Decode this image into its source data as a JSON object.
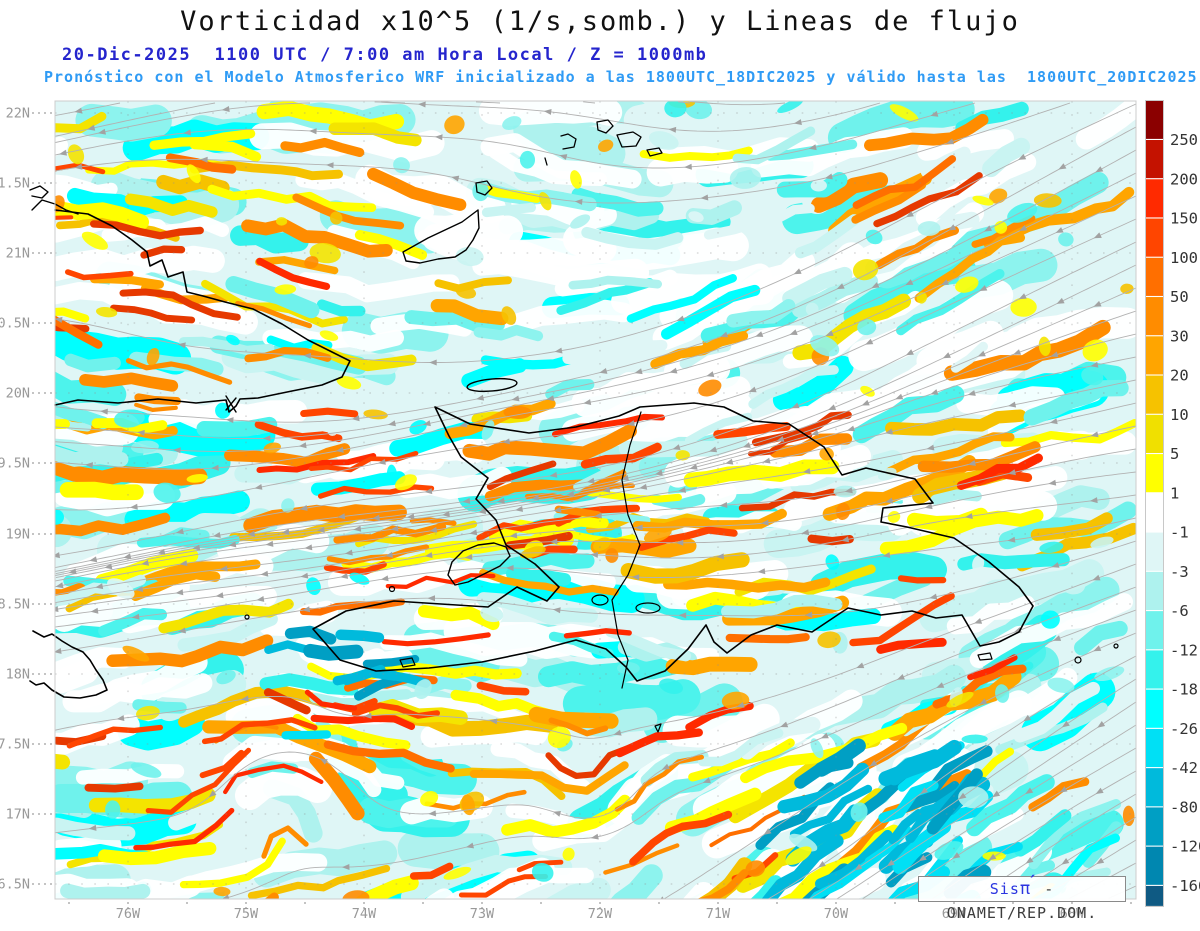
{
  "header": {
    "title": "Vorticidad x10^5 (1/s,somb.) y Lineas de flujo",
    "subtitle": "20-Dic-2025  1100 UTC / 7:00 am Hora Local / Z = 1000mb",
    "model_line": "Pronóstico con el Modelo Atmosferico WRF inicializado a las 1800UTC_18DIC2025 y válido hasta las  1800UTC_20DIC2025"
  },
  "axes": {
    "lat_labels": [
      "22N",
      "1.5N",
      "21N",
      "0.5N",
      "20N",
      "9.5N",
      "19N",
      "8.5N",
      "18N",
      "7.5N",
      "17N",
      "6.5N"
    ],
    "lon_labels": [
      "76W",
      "75W",
      "74W",
      "73W",
      "72W",
      "71W",
      "70W",
      "69W",
      "68W"
    ]
  },
  "colorbar": {
    "labels": [
      "250",
      "200",
      "150",
      "100",
      "50",
      "30",
      "20",
      "10",
      "5",
      "1",
      "-1",
      "-3",
      "-6",
      "-12",
      "-18",
      "-26",
      "-42",
      "-80",
      "-120",
      "-160"
    ],
    "colors": [
      "#8b0000",
      "#c41200",
      "#ff2a00",
      "#ff4500",
      "#ff6f00",
      "#ff8c00",
      "#ffa500",
      "#f6c200",
      "#f0e000",
      "#ffff00",
      "#ffffff",
      "#dff6f6",
      "#aef2ee",
      "#6ff2ec",
      "#34f2ec",
      "#00ffff",
      "#00e0f5",
      "#00badc",
      "#009fc4",
      "#0087b0",
      "#0f5a83"
    ]
  },
  "watermark": {
    "prefix": "Sis",
    "symbol": "π",
    "accent": "´",
    "rest": "-  ONAMET/REP.DOM."
  },
  "colors": {
    "title": "#111111",
    "subtitle": "#2525cd",
    "model_line": "#2f9bf5",
    "axis": "#999999",
    "coastline": "#000000",
    "streamline": "#b2b2b2",
    "arrow": "#a2a2a2",
    "grid": "#909090",
    "watermark_brand": "#2b35e0",
    "watermark_text": "#3c3c3c",
    "field_base": "#dff6f6"
  },
  "chart_data": {
    "type": "heatmap",
    "title": "Vorticidad x10^5 (1/s,somb.) y Lineas de flujo",
    "shaded_field": "Vorticidad x10^5 (1/s)",
    "overlay": "Lineas de flujo (streamlines, flujo del este/noreste hacia el oeste/suroeste)",
    "level": "Z = 1000mb",
    "valid_time": "20-Dic-2025 1100 UTC / 7:00 am Hora Local",
    "model": "WRF",
    "init_time": "1800UTC_18DIC2025",
    "valid_until": "1800UTC_20DIC2025",
    "region": "Cuba oriental, Jamaica, La Española (Haití / Rep. Dominicana), Islas Turcas y Caicos, Gran Inagua, Isla Mona",
    "lat_tick_labels": [
      "22N",
      "1.5N",
      "21N",
      "0.5N",
      "20N",
      "9.5N",
      "19N",
      "8.5N",
      "18N",
      "7.5N",
      "17N",
      "6.5N"
    ],
    "lon_tick_labels": [
      "76W",
      "75W",
      "74W",
      "73W",
      "72W",
      "71W",
      "70W",
      "69W",
      "68W"
    ],
    "colorbar_levels": [
      250,
      200,
      150,
      100,
      50,
      30,
      20,
      10,
      5,
      1,
      -1,
      -3,
      -6,
      -12,
      -18,
      -26,
      -42,
      -80,
      -120,
      -160
    ],
    "colorbar_colors": [
      "#8b0000",
      "#c41200",
      "#ff2a00",
      "#ff4500",
      "#ff6f00",
      "#ff8c00",
      "#ffa500",
      "#f6c200",
      "#f0e000",
      "#ffff00",
      "#ffffff",
      "#dff6f6",
      "#aef2ee",
      "#6ff2ec",
      "#34f2ec",
      "#00ffff",
      "#00e0f5",
      "#00badc",
      "#009fc4",
      "#0087b0",
      "#0f5a83"
    ],
    "legend_position": "right",
    "source": "SisPI - ONAMET/REP.DOM."
  }
}
